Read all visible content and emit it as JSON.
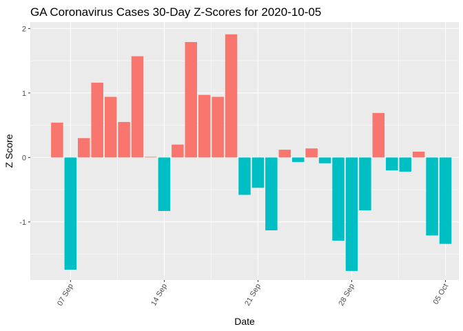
{
  "chart_data": {
    "type": "bar",
    "title": "GA Coronavirus Cases 30-Day Z-Scores for 2020-10-05",
    "xlabel": "Date",
    "ylabel": "Z Score",
    "ylim": [
      -1.9,
      2.1
    ],
    "y_ticks": [
      -1,
      0,
      1,
      2
    ],
    "x_ticks": [
      {
        "label": "07 Sep",
        "date": "2020-09-07"
      },
      {
        "label": "14 Sep",
        "date": "2020-09-14"
      },
      {
        "label": "21 Sep",
        "date": "2020-09-21"
      },
      {
        "label": "28 Sep",
        "date": "2020-09-28"
      },
      {
        "label": "05 Oct",
        "date": "2020-10-05"
      }
    ],
    "x_range": [
      "2020-09-04",
      "2020-10-06"
    ],
    "grid": true,
    "legend": "none",
    "colors": {
      "positive": "#F8766D",
      "negative": "#00BFC4"
    },
    "dates": [
      "2020-09-06",
      "2020-09-07",
      "2020-09-08",
      "2020-09-09",
      "2020-09-10",
      "2020-09-11",
      "2020-09-12",
      "2020-09-13",
      "2020-09-14",
      "2020-09-15",
      "2020-09-16",
      "2020-09-17",
      "2020-09-18",
      "2020-09-19",
      "2020-09-20",
      "2020-09-21",
      "2020-09-22",
      "2020-09-23",
      "2020-09-24",
      "2020-09-25",
      "2020-09-26",
      "2020-09-27",
      "2020-09-28",
      "2020-09-29",
      "2020-09-30",
      "2020-10-01",
      "2020-10-02",
      "2020-10-03",
      "2020-10-04",
      "2020-10-05"
    ],
    "values": [
      0.54,
      -1.74,
      0.3,
      1.16,
      0.94,
      0.55,
      1.57,
      0.01,
      -0.83,
      0.2,
      1.79,
      0.97,
      0.94,
      1.91,
      -0.58,
      -0.47,
      -1.13,
      0.12,
      -0.07,
      0.14,
      -0.09,
      -1.29,
      -1.76,
      -0.82,
      0.69,
      -0.2,
      -0.22,
      0.09,
      -1.21,
      -1.34
    ]
  }
}
